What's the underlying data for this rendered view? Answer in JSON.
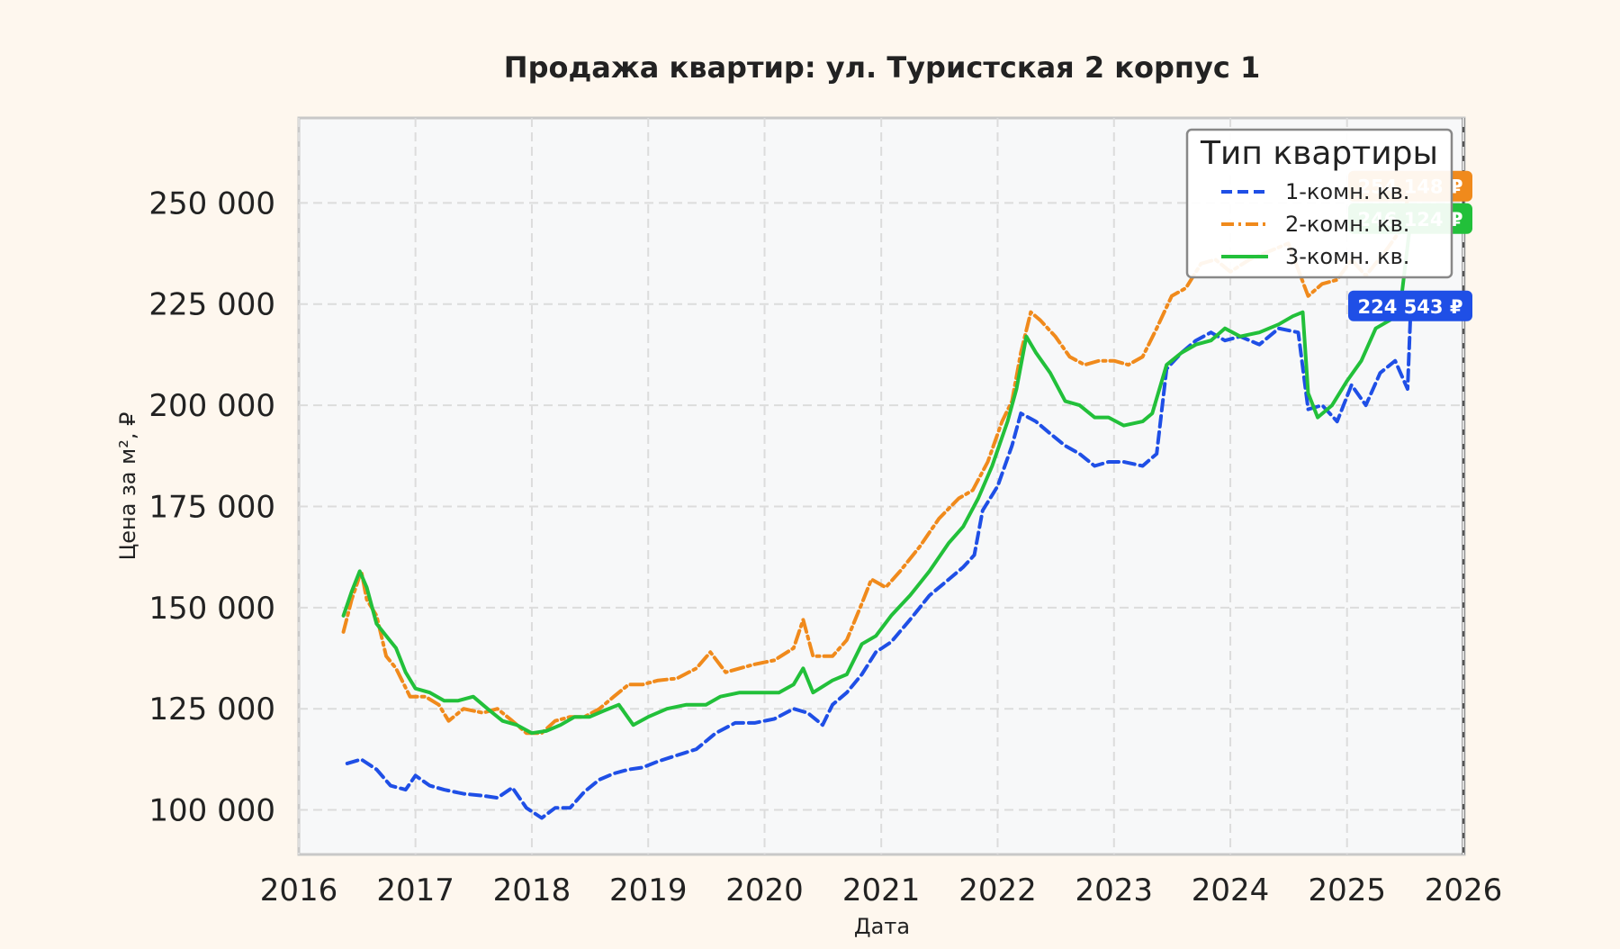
{
  "chart_data": {
    "type": "line",
    "title": "Продажа квартир: ул. Туристская 2 корпус 1",
    "xlabel": "Дата",
    "ylabel": "Цена за м², ₽",
    "xlim": [
      "2016-01-01",
      "2026-01-01"
    ],
    "ylim": [
      89000,
      271000
    ],
    "x_ticks": [
      "2016",
      "2017",
      "2018",
      "2019",
      "2020",
      "2021",
      "2022",
      "2023",
      "2024",
      "2025",
      "2026"
    ],
    "y_ticks": [
      {
        "value": 100000,
        "label": "100 000"
      },
      {
        "value": 125000,
        "label": "125 000"
      },
      {
        "value": 150000,
        "label": "150 000"
      },
      {
        "value": 175000,
        "label": "175 000"
      },
      {
        "value": 200000,
        "label": "200 000"
      },
      {
        "value": 225000,
        "label": "225 000"
      },
      {
        "value": 250000,
        "label": "250 000"
      }
    ],
    "grid": true,
    "legend": {
      "title": "Тип квартиры",
      "position": "top-right"
    },
    "series": [
      {
        "name": "1-комн. кв.",
        "color": "#1f4fe6",
        "style": "dashed",
        "end_label": "224 543 ₽",
        "points": [
          [
            "2016-06-01",
            111500
          ],
          [
            "2016-07-15",
            112500
          ],
          [
            "2016-09-01",
            110000
          ],
          [
            "2016-10-15",
            106000
          ],
          [
            "2016-12-01",
            105000
          ],
          [
            "2017-01-01",
            108500
          ],
          [
            "2017-02-15",
            106000
          ],
          [
            "2017-04-01",
            105000
          ],
          [
            "2017-06-01",
            104000
          ],
          [
            "2017-08-01",
            103500
          ],
          [
            "2017-09-15",
            103000
          ],
          [
            "2017-11-01",
            105500
          ],
          [
            "2017-12-15",
            100500
          ],
          [
            "2018-02-01",
            98000
          ],
          [
            "2018-03-15",
            100500
          ],
          [
            "2018-05-01",
            100500
          ],
          [
            "2018-06-15",
            104500
          ],
          [
            "2018-08-01",
            107500
          ],
          [
            "2018-09-15",
            109000
          ],
          [
            "2018-11-01",
            110000
          ],
          [
            "2018-12-15",
            110500
          ],
          [
            "2019-02-01",
            112000
          ],
          [
            "2019-04-01",
            113500
          ],
          [
            "2019-06-01",
            115000
          ],
          [
            "2019-08-01",
            119000
          ],
          [
            "2019-10-01",
            121500
          ],
          [
            "2019-12-01",
            121500
          ],
          [
            "2020-02-01",
            122500
          ],
          [
            "2020-04-01",
            125000
          ],
          [
            "2020-05-15",
            124000
          ],
          [
            "2020-07-01",
            121000
          ],
          [
            "2020-08-01",
            126000
          ],
          [
            "2020-09-15",
            129000
          ],
          [
            "2020-11-01",
            133500
          ],
          [
            "2020-12-15",
            139000
          ],
          [
            "2021-02-01",
            141500
          ],
          [
            "2021-04-01",
            147000
          ],
          [
            "2021-06-01",
            153000
          ],
          [
            "2021-08-01",
            157000
          ],
          [
            "2021-09-15",
            160000
          ],
          [
            "2021-10-20",
            163000
          ],
          [
            "2021-11-15",
            174000
          ],
          [
            "2022-01-01",
            180000
          ],
          [
            "2022-02-15",
            190000
          ],
          [
            "2022-03-15",
            198000
          ],
          [
            "2022-05-01",
            196000
          ],
          [
            "2022-06-15",
            193000
          ],
          [
            "2022-08-01",
            190000
          ],
          [
            "2022-09-15",
            188000
          ],
          [
            "2022-11-01",
            185000
          ],
          [
            "2022-12-15",
            186000
          ],
          [
            "2023-02-01",
            186000
          ],
          [
            "2023-04-01",
            185000
          ],
          [
            "2023-05-15",
            188000
          ],
          [
            "2023-06-15",
            209000
          ],
          [
            "2023-08-01",
            213000
          ],
          [
            "2023-09-15",
            216000
          ],
          [
            "2023-11-01",
            218000
          ],
          [
            "2023-12-15",
            216000
          ],
          [
            "2024-02-01",
            217000
          ],
          [
            "2024-04-01",
            215000
          ],
          [
            "2024-06-01",
            219000
          ],
          [
            "2024-08-01",
            218000
          ],
          [
            "2024-09-01",
            199000
          ],
          [
            "2024-10-15",
            200000
          ],
          [
            "2024-12-01",
            196000
          ],
          [
            "2025-01-15",
            205000
          ],
          [
            "2025-03-01",
            200000
          ],
          [
            "2025-04-15",
            208000
          ],
          [
            "2025-06-01",
            211000
          ],
          [
            "2025-07-10",
            204000
          ],
          [
            "2025-07-20",
            224543
          ]
        ]
      },
      {
        "name": "2-комн. кв.",
        "color": "#f08a1c",
        "style": "dashdot",
        "end_label": "254 148 ₽",
        "points": [
          [
            "2016-05-20",
            144000
          ],
          [
            "2016-06-15",
            152000
          ],
          [
            "2016-07-15",
            159000
          ],
          [
            "2016-08-01",
            152000
          ],
          [
            "2016-09-01",
            148000
          ],
          [
            "2016-10-01",
            138000
          ],
          [
            "2016-11-01",
            135000
          ],
          [
            "2016-12-15",
            128000
          ],
          [
            "2017-02-01",
            128000
          ],
          [
            "2017-03-15",
            126000
          ],
          [
            "2017-04-15",
            122000
          ],
          [
            "2017-06-01",
            125000
          ],
          [
            "2017-08-01",
            124000
          ],
          [
            "2017-09-15",
            125000
          ],
          [
            "2017-11-01",
            122000
          ],
          [
            "2017-12-15",
            119000
          ],
          [
            "2018-02-01",
            119000
          ],
          [
            "2018-03-15",
            122000
          ],
          [
            "2018-05-01",
            123000
          ],
          [
            "2018-06-15",
            123000
          ],
          [
            "2018-08-01",
            125000
          ],
          [
            "2018-09-15",
            128000
          ],
          [
            "2018-11-01",
            131000
          ],
          [
            "2018-12-15",
            131000
          ],
          [
            "2019-02-01",
            132000
          ],
          [
            "2019-04-01",
            132500
          ],
          [
            "2019-06-01",
            135000
          ],
          [
            "2019-07-15",
            139000
          ],
          [
            "2019-09-01",
            134000
          ],
          [
            "2019-10-15",
            135000
          ],
          [
            "2019-12-01",
            136000
          ],
          [
            "2020-02-01",
            137000
          ],
          [
            "2020-04-01",
            140000
          ],
          [
            "2020-05-01",
            147000
          ],
          [
            "2020-06-01",
            138000
          ],
          [
            "2020-08-01",
            138000
          ],
          [
            "2020-09-15",
            142000
          ],
          [
            "2020-11-01",
            151000
          ],
          [
            "2020-12-01",
            157000
          ],
          [
            "2021-01-15",
            155000
          ],
          [
            "2021-03-01",
            159000
          ],
          [
            "2021-05-01",
            165000
          ],
          [
            "2021-07-01",
            172000
          ],
          [
            "2021-09-01",
            177000
          ],
          [
            "2021-10-15",
            179000
          ],
          [
            "2021-12-01",
            186000
          ],
          [
            "2022-01-15",
            196000
          ],
          [
            "2022-02-15",
            201000
          ],
          [
            "2022-03-15",
            213000
          ],
          [
            "2022-04-15",
            223000
          ],
          [
            "2022-05-15",
            221000
          ],
          [
            "2022-07-01",
            217000
          ],
          [
            "2022-08-15",
            212000
          ],
          [
            "2022-10-01",
            210000
          ],
          [
            "2022-11-15",
            211000
          ],
          [
            "2023-01-01",
            211000
          ],
          [
            "2023-02-15",
            210000
          ],
          [
            "2023-04-01",
            212000
          ],
          [
            "2023-05-15",
            219000
          ],
          [
            "2023-07-01",
            227000
          ],
          [
            "2023-08-15",
            229000
          ],
          [
            "2023-10-01",
            235000
          ],
          [
            "2023-11-15",
            236000
          ],
          [
            "2024-01-01",
            233000
          ],
          [
            "2024-03-01",
            236000
          ],
          [
            "2024-05-01",
            238000
          ],
          [
            "2024-07-01",
            240000
          ],
          [
            "2024-09-01",
            227000
          ],
          [
            "2024-10-15",
            230000
          ],
          [
            "2024-12-01",
            231000
          ],
          [
            "2025-01-15",
            236000
          ],
          [
            "2025-03-01",
            232000
          ],
          [
            "2025-05-01",
            238000
          ],
          [
            "2025-06-15",
            243000
          ],
          [
            "2025-07-20",
            254148
          ]
        ]
      },
      {
        "name": "3-комн. кв.",
        "color": "#22c03a",
        "style": "solid",
        "end_label": "246 124 ₽",
        "points": [
          [
            "2016-05-20",
            148000
          ],
          [
            "2016-06-15",
            154000
          ],
          [
            "2016-07-10",
            159000
          ],
          [
            "2016-08-01",
            155000
          ],
          [
            "2016-09-01",
            146000
          ],
          [
            "2016-10-01",
            143000
          ],
          [
            "2016-11-01",
            140000
          ],
          [
            "2016-12-01",
            134000
          ],
          [
            "2017-01-01",
            130000
          ],
          [
            "2017-02-15",
            129000
          ],
          [
            "2017-04-01",
            127000
          ],
          [
            "2017-05-15",
            127000
          ],
          [
            "2017-07-01",
            128000
          ],
          [
            "2017-08-15",
            125000
          ],
          [
            "2017-10-01",
            122000
          ],
          [
            "2017-11-15",
            121000
          ],
          [
            "2018-01-01",
            119000
          ],
          [
            "2018-02-15",
            119500
          ],
          [
            "2018-04-01",
            121000
          ],
          [
            "2018-05-15",
            123000
          ],
          [
            "2018-07-01",
            123000
          ],
          [
            "2018-08-15",
            124500
          ],
          [
            "2018-10-01",
            126000
          ],
          [
            "2018-11-15",
            121000
          ],
          [
            "2019-01-01",
            123000
          ],
          [
            "2019-03-01",
            125000
          ],
          [
            "2019-05-01",
            126000
          ],
          [
            "2019-07-01",
            126000
          ],
          [
            "2019-08-15",
            128000
          ],
          [
            "2019-10-15",
            129000
          ],
          [
            "2019-12-15",
            129000
          ],
          [
            "2020-02-15",
            129000
          ],
          [
            "2020-04-01",
            131000
          ],
          [
            "2020-05-01",
            135000
          ],
          [
            "2020-06-01",
            129000
          ],
          [
            "2020-08-01",
            132000
          ],
          [
            "2020-09-15",
            133500
          ],
          [
            "2020-11-01",
            141000
          ],
          [
            "2020-12-15",
            143000
          ],
          [
            "2021-02-01",
            148000
          ],
          [
            "2021-04-01",
            153000
          ],
          [
            "2021-06-01",
            159000
          ],
          [
            "2021-08-01",
            166000
          ],
          [
            "2021-09-15",
            170000
          ],
          [
            "2021-11-01",
            177000
          ],
          [
            "2021-12-15",
            185000
          ],
          [
            "2022-02-01",
            196000
          ],
          [
            "2022-03-01",
            204000
          ],
          [
            "2022-04-01",
            217000
          ],
          [
            "2022-05-01",
            213000
          ],
          [
            "2022-06-15",
            208000
          ],
          [
            "2022-08-01",
            201000
          ],
          [
            "2022-09-15",
            200000
          ],
          [
            "2022-11-01",
            197000
          ],
          [
            "2022-12-15",
            197000
          ],
          [
            "2023-02-01",
            195000
          ],
          [
            "2023-04-01",
            196000
          ],
          [
            "2023-05-01",
            198000
          ],
          [
            "2023-06-15",
            210000
          ],
          [
            "2023-08-01",
            213000
          ],
          [
            "2023-09-15",
            215000
          ],
          [
            "2023-11-01",
            216000
          ],
          [
            "2023-12-15",
            219000
          ],
          [
            "2024-02-01",
            217000
          ],
          [
            "2024-04-01",
            218000
          ],
          [
            "2024-06-01",
            220000
          ],
          [
            "2024-07-15",
            222000
          ],
          [
            "2024-08-15",
            223000
          ],
          [
            "2024-09-01",
            203000
          ],
          [
            "2024-10-01",
            197000
          ],
          [
            "2024-11-15",
            200000
          ],
          [
            "2025-01-01",
            206000
          ],
          [
            "2025-02-15",
            211000
          ],
          [
            "2025-04-01",
            219000
          ],
          [
            "2025-05-15",
            221000
          ],
          [
            "2025-06-15",
            223000
          ],
          [
            "2025-07-20",
            246124
          ]
        ]
      }
    ]
  }
}
